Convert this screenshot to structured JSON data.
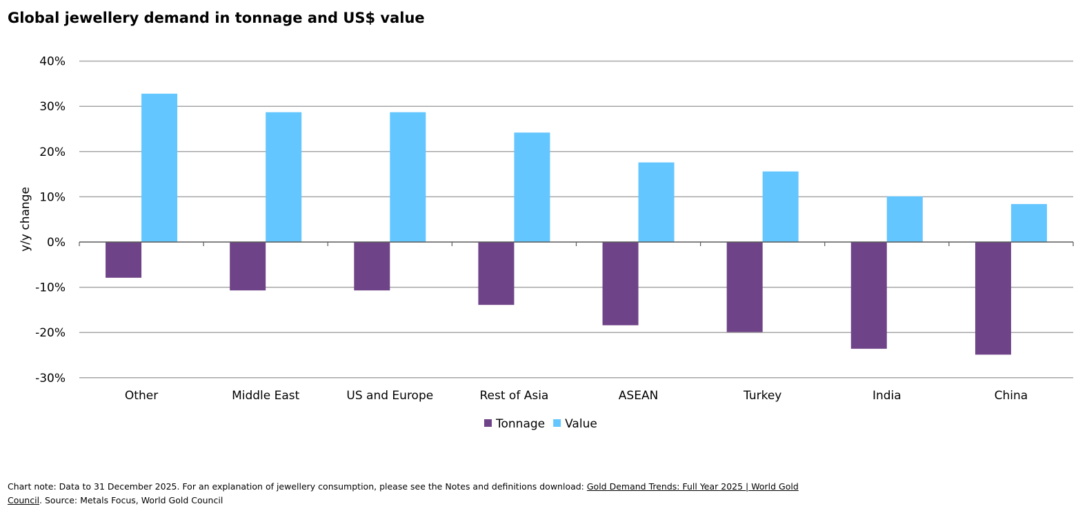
{
  "title": "Global jewellery demand in tonnage and US$ value",
  "note": {
    "prefix": "Chart note: Data to 31 December 2025. For an explanation of jewellery consumption, please see the Notes and definitions download: ",
    "link": "Gold Demand Trends: Full Year 2025 | World Gold Council",
    "suffix": ". Source: Metals Focus, World Gold Council"
  },
  "chart_data": {
    "type": "bar",
    "title": "Global jewellery demand in tonnage and US$ value",
    "xlabel": "",
    "ylabel": "y/y change",
    "ylim": [
      -30,
      40
    ],
    "yticks": [
      40,
      30,
      20,
      10,
      0,
      -10,
      -20,
      -30
    ],
    "ytick_labels": [
      "40%",
      "30%",
      "20%",
      "10%",
      "0%",
      "-10%",
      "-20%",
      "-30%"
    ],
    "grid": true,
    "legend": "bottom",
    "categories": [
      "Other",
      "Middle East",
      "US and Europe",
      "Rest of Asia",
      "ASEAN",
      "Turkey",
      "India",
      "China"
    ],
    "series": [
      {
        "name": "Tonnage",
        "color": "#6f4387",
        "values": [
          -7.9,
          -10.7,
          -10.7,
          -13.9,
          -18.4,
          -19.9,
          -23.6,
          -24.9
        ]
      },
      {
        "name": "Value",
        "color": "#64c6ff",
        "values": [
          32.8,
          28.7,
          28.7,
          24.2,
          17.6,
          15.6,
          10.1,
          8.4
        ]
      }
    ]
  }
}
